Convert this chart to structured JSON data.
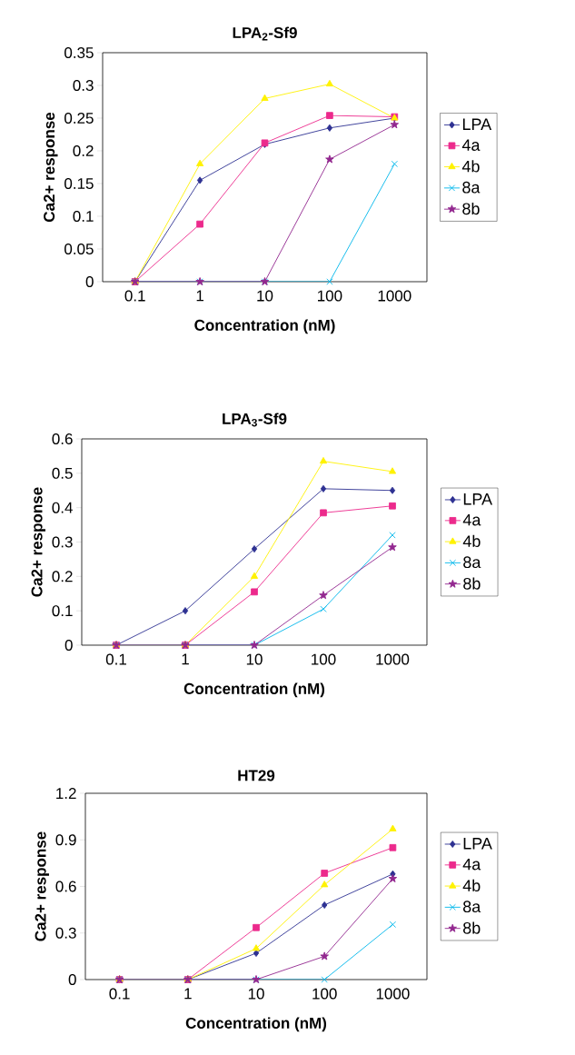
{
  "chart_data": [
    {
      "type": "line",
      "title": "LPA$_{2}$-Sf9",
      "xlabel": "Concentration (nM)",
      "ylabel": "Ca2+ response",
      "categories": [
        "0.1",
        "1",
        "10",
        "100",
        "1000"
      ],
      "ylim": [
        0,
        0.35
      ],
      "yticks": [
        0,
        0.05,
        0.1,
        0.15,
        0.2,
        0.25,
        0.3,
        0.35
      ],
      "legend": "right",
      "grid": false,
      "line_style": "solid",
      "series": [
        {
          "name": "LPA",
          "color": "#2e3192",
          "marker": "diamond",
          "values": [
            0,
            0.155,
            0.21,
            0.235,
            0.25
          ]
        },
        {
          "name": "4a",
          "color": "#ec2a8c",
          "marker": "square",
          "values": [
            0,
            0.088,
            0.212,
            0.254,
            0.252
          ]
        },
        {
          "name": "4b",
          "color": "#fff200",
          "marker": "triangle",
          "values": [
            0,
            0.18,
            0.28,
            0.302,
            0.25
          ]
        },
        {
          "name": "8a",
          "color": "#00b7eb",
          "marker": "cross",
          "values": [
            0,
            0,
            0,
            0,
            0.18
          ]
        },
        {
          "name": "8b",
          "color": "#92278f",
          "marker": "star",
          "values": [
            0,
            0,
            0,
            0.187,
            0.24
          ]
        }
      ]
    },
    {
      "type": "line",
      "title": "LPA$_{3}$-Sf9",
      "xlabel": "Concentration (nM)",
      "ylabel": "Ca2+ response",
      "categories": [
        "0.1",
        "1",
        "10",
        "100",
        "1000"
      ],
      "ylim": [
        0,
        0.6
      ],
      "yticks": [
        0,
        0.1,
        0.2,
        0.3,
        0.4,
        0.5,
        0.6
      ],
      "legend": "right",
      "grid": false,
      "line_style": "solid",
      "series": [
        {
          "name": "LPA",
          "color": "#2e3192",
          "marker": "diamond",
          "values": [
            0,
            0.1,
            0.28,
            0.455,
            0.45
          ]
        },
        {
          "name": "4a",
          "color": "#ec2a8c",
          "marker": "square",
          "values": [
            0,
            0,
            0.155,
            0.385,
            0.405
          ]
        },
        {
          "name": "4b",
          "color": "#fff200",
          "marker": "triangle",
          "values": [
            0,
            0,
            0.2,
            0.535,
            0.505
          ]
        },
        {
          "name": "8a",
          "color": "#00b7eb",
          "marker": "cross",
          "values": [
            0,
            0,
            0,
            0.105,
            0.32
          ]
        },
        {
          "name": "8b",
          "color": "#92278f",
          "marker": "star",
          "values": [
            0,
            0,
            0,
            0.145,
            0.285
          ]
        }
      ]
    },
    {
      "type": "line",
      "title": "HT29",
      "xlabel": "Concentration (nM)",
      "ylabel": "Ca2+ response",
      "categories": [
        "0.1",
        "1",
        "10",
        "100",
        "1000"
      ],
      "ylim": [
        0,
        1.2
      ],
      "yticks": [
        0,
        0.3,
        0.6,
        0.9,
        1.2
      ],
      "legend": "right",
      "grid": false,
      "line_style": "solid",
      "series": [
        {
          "name": "LPA",
          "color": "#2e3192",
          "marker": "diamond",
          "values": [
            0,
            0,
            0.17,
            0.48,
            0.68
          ]
        },
        {
          "name": "4a",
          "color": "#ec2a8c",
          "marker": "square",
          "values": [
            0,
            0,
            0.335,
            0.685,
            0.85
          ]
        },
        {
          "name": "4b",
          "color": "#fff200",
          "marker": "triangle",
          "values": [
            0,
            0,
            0.2,
            0.61,
            0.97
          ]
        },
        {
          "name": "8a",
          "color": "#00b7eb",
          "marker": "cross",
          "values": [
            0,
            0,
            0,
            0,
            0.355
          ]
        },
        {
          "name": "8b",
          "color": "#92278f",
          "marker": "star",
          "values": [
            0,
            0,
            0,
            0.15,
            0.65
          ]
        }
      ]
    }
  ]
}
